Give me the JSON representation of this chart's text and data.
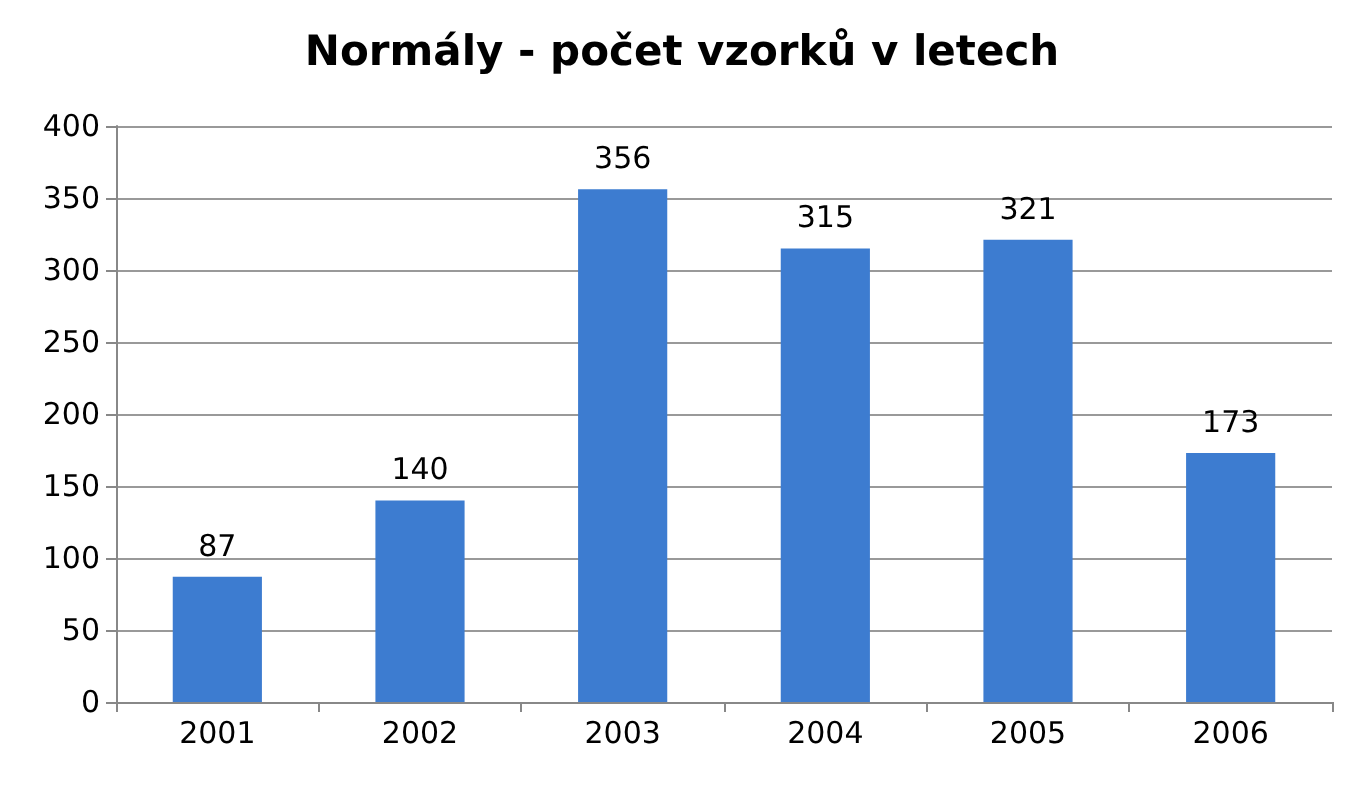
{
  "chart_data": {
    "type": "bar",
    "title": "Normály - počet vzorků v letech",
    "categories": [
      "2001",
      "2002",
      "2003",
      "2004",
      "2005",
      "2006"
    ],
    "values": [
      87,
      140,
      356,
      315,
      321,
      173
    ],
    "color": "#3d7cd0",
    "ylim": [
      0,
      400
    ],
    "yticks": [
      0,
      50,
      100,
      150,
      200,
      250,
      300,
      350,
      400
    ],
    "grid": "y",
    "data_labels": true
  }
}
